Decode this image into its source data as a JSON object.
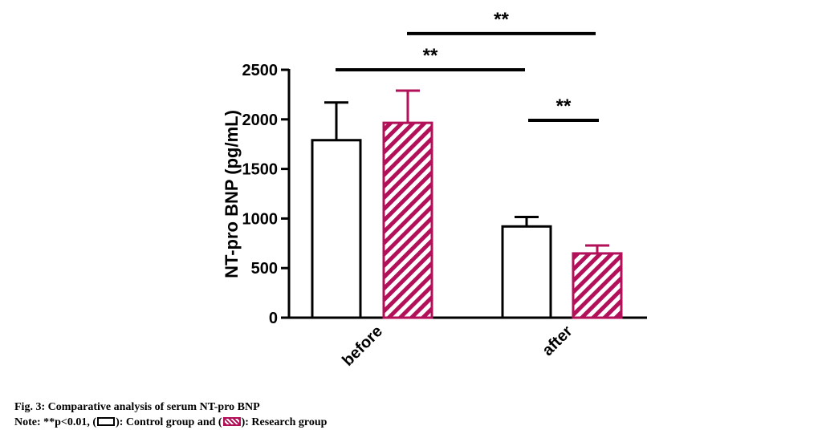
{
  "chart_data": {
    "type": "bar",
    "title": "",
    "xlabel": "",
    "ylabel": "NT-pro BNP (pg/mL)",
    "ylim": [
      0,
      2500
    ],
    "yticks": [
      0,
      500,
      1000,
      1500,
      2000,
      2500
    ],
    "categories": [
      "before",
      "after"
    ],
    "series": [
      {
        "name": "Control group",
        "values": [
          1790,
          920
        ],
        "errors": [
          380,
          95
        ],
        "color": "#000000",
        "pattern": "open"
      },
      {
        "name": "Research group",
        "values": [
          1965,
          648
        ],
        "errors": [
          325,
          80
        ],
        "color": "#b3105a",
        "pattern": "hatched"
      }
    ],
    "significance": [
      {
        "label": "**",
        "from": "before",
        "to": "after",
        "level": 2500
      },
      {
        "label": "**",
        "from": "before-research",
        "to": "after-control",
        "level": 2865
      },
      {
        "label": "**",
        "from": "after-control",
        "to": "after-research",
        "level": 1990
      }
    ],
    "grid": false,
    "legend": "caption"
  },
  "caption": {
    "fig_title": "Fig. 3: Comparative analysis of serum NT-pro BNP",
    "note_prefix": "Note: **p<0.01, (",
    "control_text": "): Control group and (",
    "research_text": "): Research group"
  }
}
